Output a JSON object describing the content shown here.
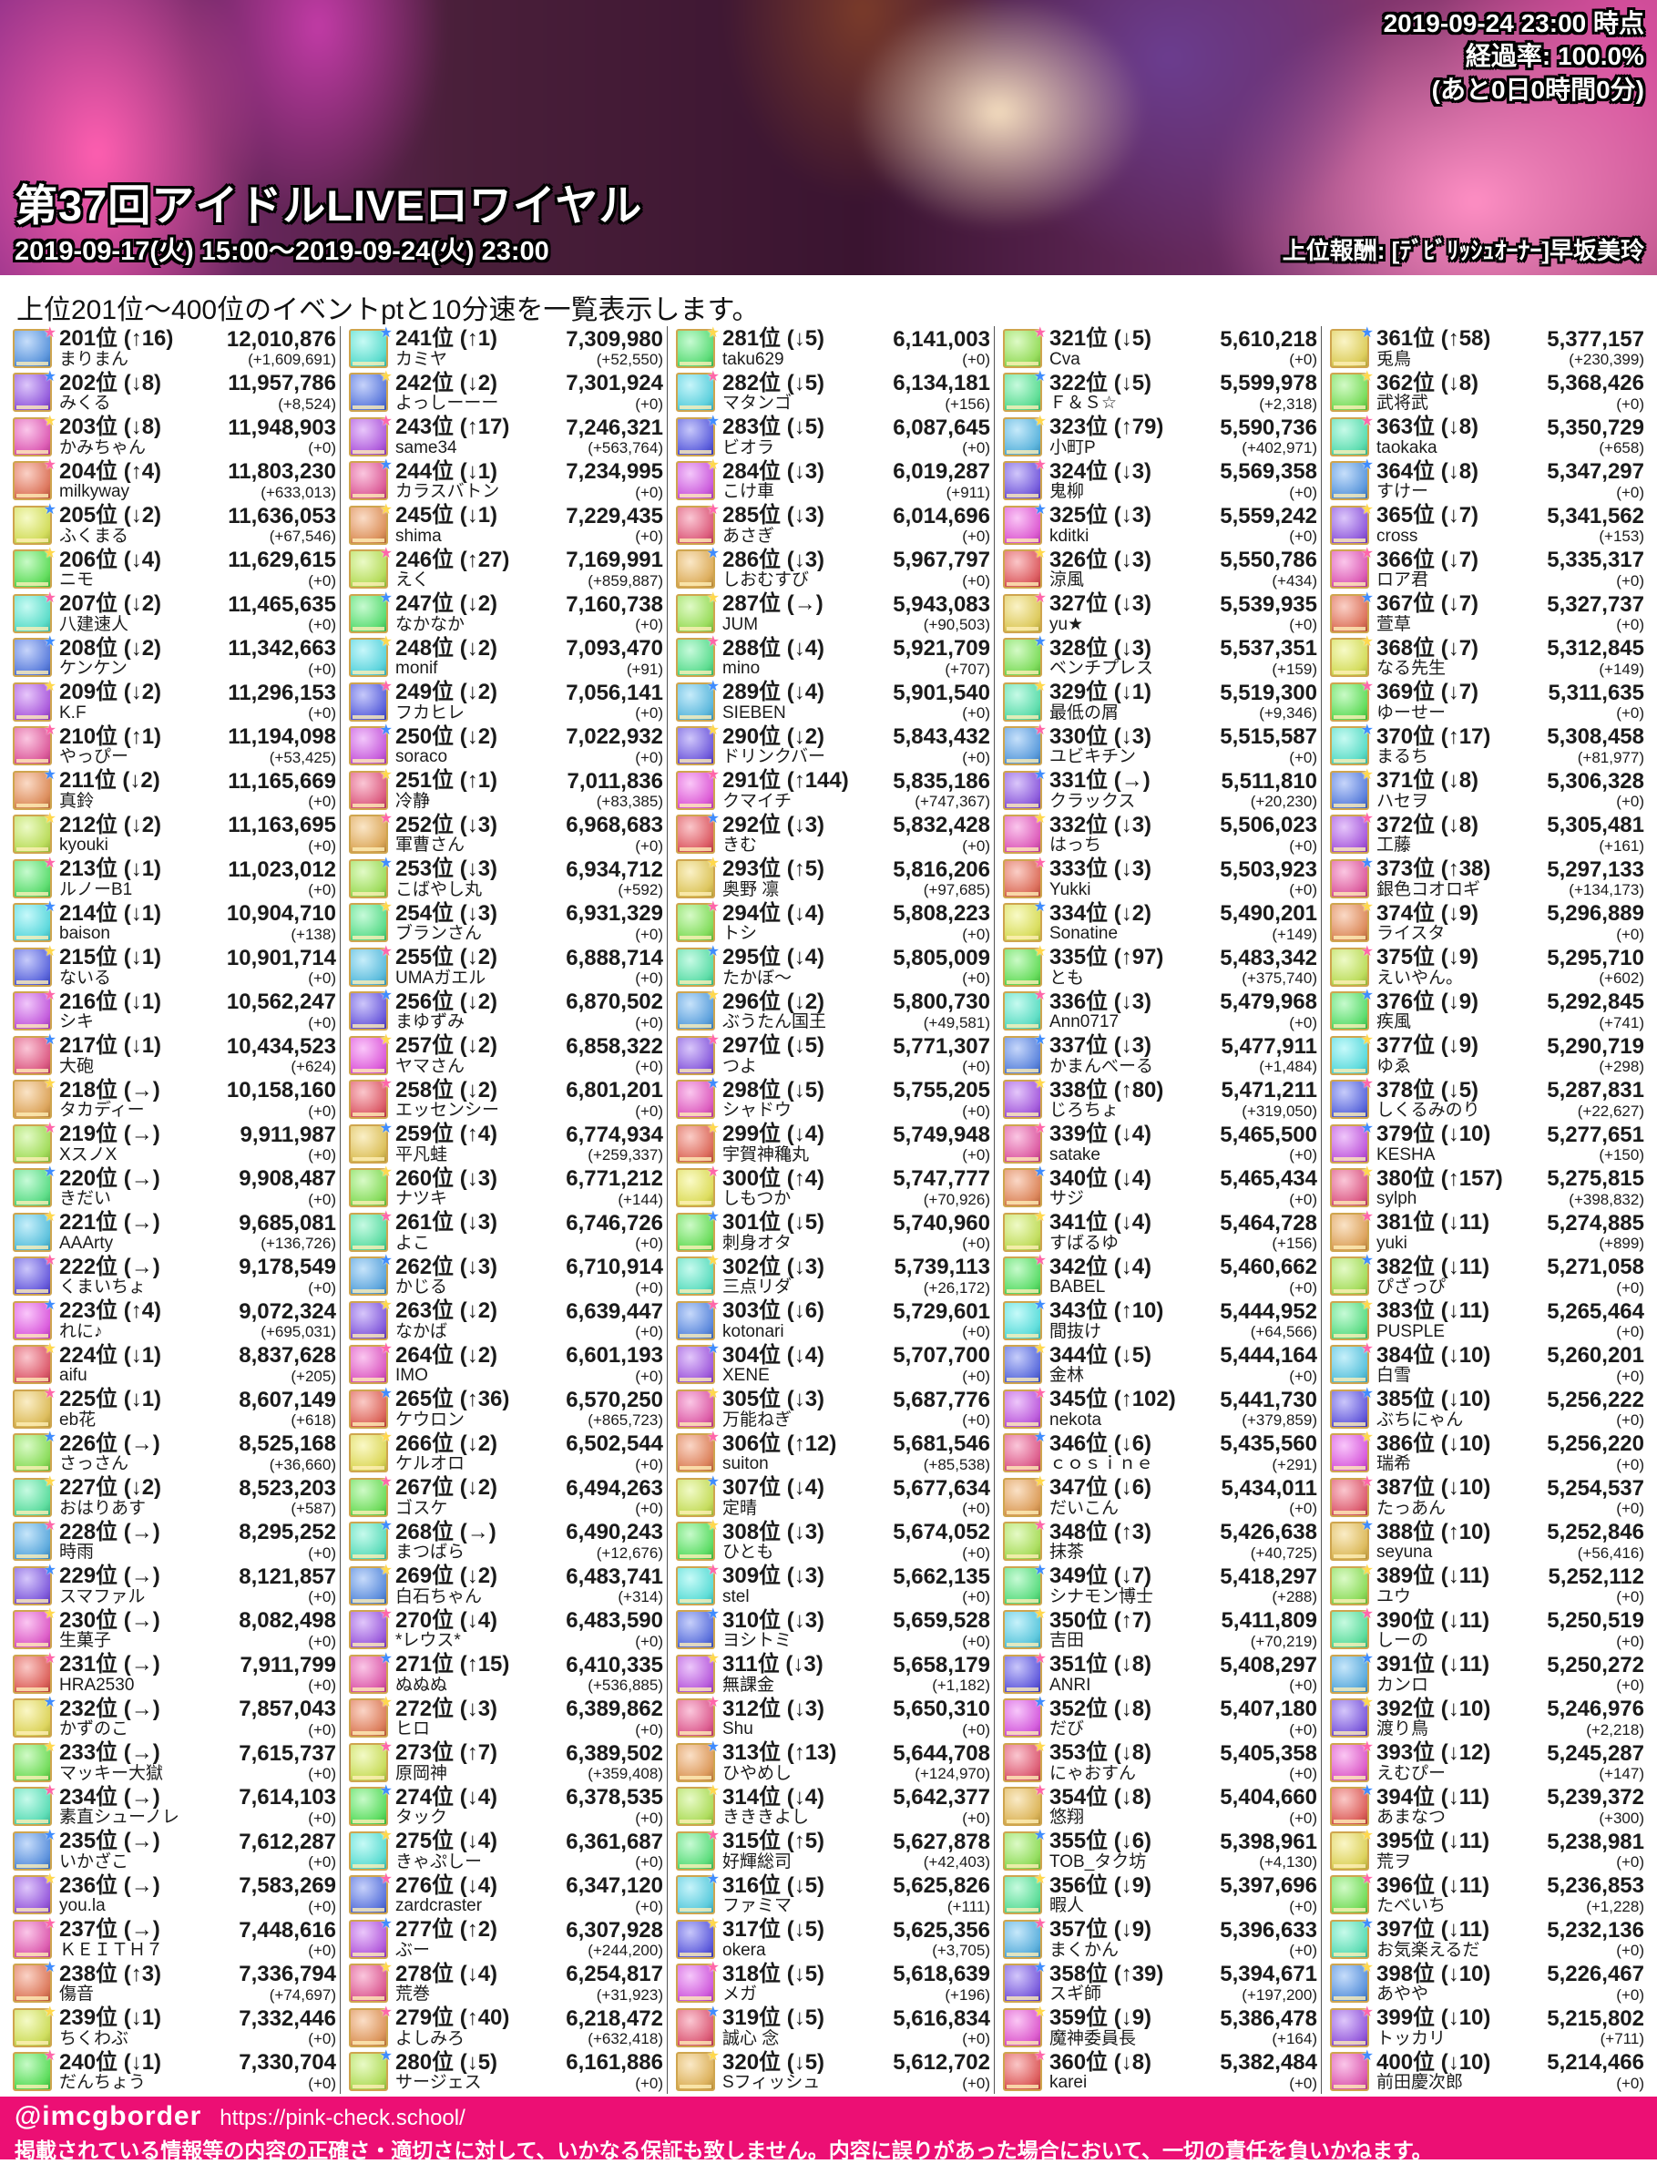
{
  "header": {
    "snapshot_time": "2019-09-24 23:00 時点",
    "progress": "経過率: 100.0%",
    "remaining": "(あと0日0時間0分)",
    "title": "第37回アイドルLIVEロワイヤル",
    "period": "2019-09-17(火) 15:00～2019-09-24(火) 23:00",
    "reward": "上位報酬: [ﾃﾞﾋﾞﾘｯｼｭｵｰﾅｰ]早坂美玲"
  },
  "subtitle": "上位201位～400位のイベントptと10分速を一覧表示します。",
  "footer": {
    "handle": "@imcgborder",
    "url": "https://pink-check.school/",
    "disclaimer": "掲載されている情報等の内容の正確さ・適切さに対して、いかなる保証も致しません。内容に誤りがあった場合において、一切の責任を負いかねます。",
    "bar_color": "#ec0f74"
  },
  "ranking": {
    "rank_suffix": "位",
    "columns": 5,
    "rows_per_column": 40,
    "entries": [
      [
        201,
        "↑16",
        "まりまん",
        "12,010,876",
        "+1,609,691"
      ],
      [
        202,
        "↓8",
        "みくる",
        "11,957,786",
        "+8,524"
      ],
      [
        203,
        "↓8",
        "かみちゃん",
        "11,948,903",
        "+0"
      ],
      [
        204,
        "↑4",
        "milkyway",
        "11,803,230",
        "+633,013"
      ],
      [
        205,
        "↓2",
        "ふくまる",
        "11,636,053",
        "+67,546"
      ],
      [
        206,
        "↓4",
        "ニモ",
        "11,629,615",
        "+0"
      ],
      [
        207,
        "↓2",
        "八建速人",
        "11,465,635",
        "+0"
      ],
      [
        208,
        "↓2",
        "ケンケン",
        "11,342,663",
        "+0"
      ],
      [
        209,
        "↓2",
        "K.F",
        "11,296,153",
        "+0"
      ],
      [
        210,
        "↑1",
        "やっぴー",
        "11,194,098",
        "+53,425"
      ],
      [
        211,
        "↓2",
        "真鈴",
        "11,165,669",
        "+0"
      ],
      [
        212,
        "↓2",
        "kyouki",
        "11,163,695",
        "+0"
      ],
      [
        213,
        "↓1",
        "ルノーB1",
        "11,023,012",
        "+0"
      ],
      [
        214,
        "↓1",
        "baison",
        "10,904,710",
        "+138"
      ],
      [
        215,
        "↓1",
        "ないる",
        "10,901,714",
        "+0"
      ],
      [
        216,
        "↓1",
        "シキ",
        "10,562,247",
        "+0"
      ],
      [
        217,
        "↓1",
        "大砲",
        "10,434,523",
        "+624"
      ],
      [
        218,
        "→",
        "タカディー",
        "10,158,160",
        "+0"
      ],
      [
        219,
        "→",
        "XスノX",
        "9,911,987",
        "+0"
      ],
      [
        220,
        "→",
        "きだい",
        "9,908,487",
        "+0"
      ],
      [
        221,
        "→",
        "AAArty",
        "9,685,081",
        "+136,726"
      ],
      [
        222,
        "→",
        "くまいちょ",
        "9,178,549",
        "+0"
      ],
      [
        223,
        "↑4",
        "れに♪",
        "9,072,324",
        "+695,031"
      ],
      [
        224,
        "↓1",
        "aifu",
        "8,837,628",
        "+205"
      ],
      [
        225,
        "↓1",
        "eb花",
        "8,607,149",
        "+618"
      ],
      [
        226,
        "→",
        "さっさん",
        "8,525,168",
        "+36,660"
      ],
      [
        227,
        "↓2",
        "おはりあす",
        "8,523,203",
        "+587"
      ],
      [
        228,
        "→",
        "時雨",
        "8,295,252",
        "+0"
      ],
      [
        229,
        "→",
        "スマファル",
        "8,121,857",
        "+0"
      ],
      [
        230,
        "→",
        "生菓子",
        "8,082,498",
        "+0"
      ],
      [
        231,
        "→",
        "HRA2530",
        "7,911,799",
        "+0"
      ],
      [
        232,
        "→",
        "かずのこ",
        "7,857,043",
        "+0"
      ],
      [
        233,
        "→",
        "マッキー大獄",
        "7,615,737",
        "+0"
      ],
      [
        234,
        "→",
        "素直シューノレ",
        "7,614,103",
        "+0"
      ],
      [
        235,
        "→",
        "いかざこ",
        "7,612,287",
        "+0"
      ],
      [
        236,
        "→",
        "you.la",
        "7,583,269",
        "+0"
      ],
      [
        237,
        "→",
        "ＫＥＩＴＨ７",
        "7,448,616",
        "+0"
      ],
      [
        238,
        "↑3",
        "傷音",
        "7,336,794",
        "+74,697"
      ],
      [
        239,
        "↓1",
        "ちくわぶ",
        "7,332,446",
        "+0"
      ],
      [
        240,
        "↓1",
        "だんちょう",
        "7,330,704",
        "+0"
      ],
      [
        241,
        "↑1",
        "カミヤ",
        "7,309,980",
        "+52,550"
      ],
      [
        242,
        "↓2",
        "よっしーーー",
        "7,301,924",
        "+0"
      ],
      [
        243,
        "↑17",
        "same34",
        "7,246,321",
        "+563,764"
      ],
      [
        244,
        "↓1",
        "カラスバトン",
        "7,234,995",
        "+0"
      ],
      [
        245,
        "↓1",
        "shima",
        "7,229,435",
        "+0"
      ],
      [
        246,
        "↑27",
        "えく",
        "7,169,991",
        "+859,887"
      ],
      [
        247,
        "↓2",
        "なかなか",
        "7,160,738",
        "+0"
      ],
      [
        248,
        "↓2",
        "monif",
        "7,093,470",
        "+91"
      ],
      [
        249,
        "↓2",
        "フカヒレ",
        "7,056,141",
        "+0"
      ],
      [
        250,
        "↓2",
        "soraco",
        "7,022,932",
        "+0"
      ],
      [
        251,
        "↑1",
        "冷静",
        "7,011,836",
        "+83,385"
      ],
      [
        252,
        "↓3",
        "軍曹さん",
        "6,968,683",
        "+0"
      ],
      [
        253,
        "↓3",
        "こばやし丸",
        "6,934,712",
        "+592"
      ],
      [
        254,
        "↓3",
        "ブランさん",
        "6,931,329",
        "+0"
      ],
      [
        255,
        "↓2",
        "UMAガエル",
        "6,888,714",
        "+0"
      ],
      [
        256,
        "↓2",
        "まゆずみ",
        "6,870,502",
        "+0"
      ],
      [
        257,
        "↓2",
        "ヤマさん",
        "6,858,322",
        "+0"
      ],
      [
        258,
        "↓2",
        "エッセンシー",
        "6,801,201",
        "+0"
      ],
      [
        259,
        "↑4",
        "平凡蛙",
        "6,774,934",
        "+259,337"
      ],
      [
        260,
        "↓3",
        "ナツキ",
        "6,771,212",
        "+144"
      ],
      [
        261,
        "↓3",
        "よこ",
        "6,746,726",
        "+0"
      ],
      [
        262,
        "↓3",
        "かじる",
        "6,710,914",
        "+0"
      ],
      [
        263,
        "↓2",
        "なかば",
        "6,639,447",
        "+0"
      ],
      [
        264,
        "↓2",
        "IMO",
        "6,601,193",
        "+0"
      ],
      [
        265,
        "↑36",
        "ケウロン",
        "6,570,250",
        "+865,723"
      ],
      [
        266,
        "↓2",
        "ケルオロ",
        "6,502,544",
        "+0"
      ],
      [
        267,
        "↓2",
        "ゴスケ",
        "6,494,263",
        "+0"
      ],
      [
        268,
        "→",
        "まつばら",
        "6,490,243",
        "+12,676"
      ],
      [
        269,
        "↓2",
        "白石ちゃん",
        "6,483,741",
        "+314"
      ],
      [
        270,
        "↓4",
        "*レウス*",
        "6,483,590",
        "+0"
      ],
      [
        271,
        "↑15",
        "ぬぬぬ",
        "6,410,335",
        "+536,885"
      ],
      [
        272,
        "↓3",
        "ヒロ",
        "6,389,862",
        "+0"
      ],
      [
        273,
        "↑7",
        "原岡神",
        "6,389,502",
        "+359,408"
      ],
      [
        274,
        "↓4",
        "タック",
        "6,378,535",
        "+0"
      ],
      [
        275,
        "↓4",
        "きゃぷしー",
        "6,361,687",
        "+0"
      ],
      [
        276,
        "↓4",
        "zardcraster",
        "6,347,120",
        "+0"
      ],
      [
        277,
        "↑2",
        "ぶー",
        "6,307,928",
        "+244,200"
      ],
      [
        278,
        "↓4",
        "荒巻",
        "6,254,817",
        "+31,923"
      ],
      [
        279,
        "↑40",
        "よしみろ",
        "6,218,472",
        "+632,418"
      ],
      [
        280,
        "↓5",
        "サージェス",
        "6,161,886",
        "+0"
      ],
      [
        281,
        "↓5",
        "taku629",
        "6,141,003",
        "+0"
      ],
      [
        282,
        "↓5",
        "マタンゴ",
        "6,134,181",
        "+156"
      ],
      [
        283,
        "↓5",
        "ビオラ",
        "6,087,645",
        "+0"
      ],
      [
        284,
        "↓3",
        "こけ車",
        "6,019,287",
        "+911"
      ],
      [
        285,
        "↓3",
        "あさぎ",
        "6,014,696",
        "+0"
      ],
      [
        286,
        "↓3",
        "しおむすび",
        "5,967,797",
        "+0"
      ],
      [
        287,
        "→",
        "JUM",
        "5,943,083",
        "+90,503"
      ],
      [
        288,
        "↓4",
        "mino",
        "5,921,709",
        "+707"
      ],
      [
        289,
        "↓4",
        "SIEBEN",
        "5,901,540",
        "+0"
      ],
      [
        290,
        "↓2",
        "ドリンクバー",
        "5,843,432",
        "+0"
      ],
      [
        291,
        "↑144",
        "クマイチ",
        "5,835,186",
        "+747,367"
      ],
      [
        292,
        "↓3",
        "きむ",
        "5,832,428",
        "+0"
      ],
      [
        293,
        "↑5",
        "奥野 凛",
        "5,816,206",
        "+97,685"
      ],
      [
        294,
        "↓4",
        "トシ",
        "5,808,223",
        "+0"
      ],
      [
        295,
        "↓4",
        "たかぼ～",
        "5,805,009",
        "+0"
      ],
      [
        296,
        "↓2",
        "ぶうたん国王",
        "5,800,730",
        "+49,581"
      ],
      [
        297,
        "↓5",
        "つよ",
        "5,771,307",
        "+0"
      ],
      [
        298,
        "↓5",
        "シャドウ",
        "5,755,205",
        "+0"
      ],
      [
        299,
        "↓4",
        "宇賀神穐丸",
        "5,749,948",
        "+0"
      ],
      [
        300,
        "↑4",
        "しもつか",
        "5,747,777",
        "+70,926"
      ],
      [
        301,
        "↓5",
        "刺身オタ",
        "5,740,960",
        "+0"
      ],
      [
        302,
        "↓3",
        "三点リダ",
        "5,739,113",
        "+26,172"
      ],
      [
        303,
        "↓6",
        "kotonari",
        "5,729,601",
        "+0"
      ],
      [
        304,
        "↓4",
        "XENE",
        "5,707,700",
        "+0"
      ],
      [
        305,
        "↓3",
        "万能ねぎ",
        "5,687,776",
        "+0"
      ],
      [
        306,
        "↑12",
        "suiton",
        "5,681,546",
        "+85,538"
      ],
      [
        307,
        "↓4",
        "定晴",
        "5,677,634",
        "+0"
      ],
      [
        308,
        "↓3",
        "ひとも",
        "5,674,052",
        "+0"
      ],
      [
        309,
        "↓3",
        "stel",
        "5,662,135",
        "+0"
      ],
      [
        310,
        "↓3",
        "ヨシトミ",
        "5,659,528",
        "+0"
      ],
      [
        311,
        "↓3",
        "無課金",
        "5,658,179",
        "+1,182"
      ],
      [
        312,
        "↓3",
        "Shu",
        "5,650,310",
        "+0"
      ],
      [
        313,
        "↑13",
        "ひやめし",
        "5,644,708",
        "+124,970"
      ],
      [
        314,
        "↓4",
        "きききよし",
        "5,642,377",
        "+0"
      ],
      [
        315,
        "↑5",
        "好輝総司",
        "5,627,878",
        "+42,403"
      ],
      [
        316,
        "↓5",
        "ファミマ",
        "5,625,826",
        "+111"
      ],
      [
        317,
        "↓5",
        "okera",
        "5,625,356",
        "+3,705"
      ],
      [
        318,
        "↓5",
        "メガ",
        "5,618,639",
        "+196"
      ],
      [
        319,
        "↓5",
        "誠心 念",
        "5,616,834",
        "+0"
      ],
      [
        320,
        "↓5",
        "Sフィッシュ",
        "5,612,702",
        "+0"
      ],
      [
        321,
        "↓5",
        "Cva",
        "5,610,218",
        "+0"
      ],
      [
        322,
        "↓5",
        "Ｆ＆Ｓ☆",
        "5,599,978",
        "+2,318"
      ],
      [
        323,
        "↑79",
        "小町P",
        "5,590,736",
        "+402,971"
      ],
      [
        324,
        "↓3",
        "鬼柳",
        "5,569,358",
        "+0"
      ],
      [
        325,
        "↓3",
        "kditki",
        "5,559,242",
        "+0"
      ],
      [
        326,
        "↓3",
        "涼風",
        "5,550,786",
        "+434"
      ],
      [
        327,
        "↓3",
        "yu★",
        "5,539,935",
        "+0"
      ],
      [
        328,
        "↓3",
        "ベンチプレス",
        "5,537,351",
        "+159"
      ],
      [
        329,
        "↓1",
        "最低の屑",
        "5,519,300",
        "+9,346"
      ],
      [
        330,
        "↓3",
        "ユビキチン",
        "5,515,587",
        "+0"
      ],
      [
        331,
        "→",
        "クラックス",
        "5,511,810",
        "+20,230"
      ],
      [
        332,
        "↓3",
        "はっち",
        "5,506,023",
        "+0"
      ],
      [
        333,
        "↓3",
        "Yukki",
        "5,503,923",
        "+0"
      ],
      [
        334,
        "↓2",
        "Sonatine",
        "5,490,201",
        "+149"
      ],
      [
        335,
        "↑97",
        "とも",
        "5,483,342",
        "+375,740"
      ],
      [
        336,
        "↓3",
        "Ann0717",
        "5,479,968",
        "+0"
      ],
      [
        337,
        "↓3",
        "かまんべーる",
        "5,477,911",
        "+1,484"
      ],
      [
        338,
        "↑80",
        "じろちょ",
        "5,471,211",
        "+319,050"
      ],
      [
        339,
        "↓4",
        "satake",
        "5,465,500",
        "+0"
      ],
      [
        340,
        "↓4",
        "サジ",
        "5,465,434",
        "+0"
      ],
      [
        341,
        "↓4",
        "すばるゆ",
        "5,464,728",
        "+156"
      ],
      [
        342,
        "↓4",
        "BABEL",
        "5,460,662",
        "+0"
      ],
      [
        343,
        "↑10",
        "間抜け",
        "5,444,952",
        "+64,566"
      ],
      [
        344,
        "↓5",
        "金林",
        "5,444,164",
        "+0"
      ],
      [
        345,
        "↑102",
        "nekota",
        "5,441,730",
        "+379,859"
      ],
      [
        346,
        "↓6",
        "ｃｏｓｉｎｅ",
        "5,435,560",
        "+291"
      ],
      [
        347,
        "↓6",
        "だいこん",
        "5,434,011",
        "+0"
      ],
      [
        348,
        "↑3",
        "抹茶",
        "5,426,638",
        "+40,725"
      ],
      [
        349,
        "↓7",
        "シナモン博士",
        "5,418,297",
        "+288"
      ],
      [
        350,
        "↑7",
        "吉田",
        "5,411,809",
        "+70,219"
      ],
      [
        351,
        "↓8",
        "ANRI",
        "5,408,297",
        "+0"
      ],
      [
        352,
        "↓8",
        "だび",
        "5,407,180",
        "+0"
      ],
      [
        353,
        "↓8",
        "にゃおすん",
        "5,405,358",
        "+0"
      ],
      [
        354,
        "↓8",
        "悠翔",
        "5,404,660",
        "+0"
      ],
      [
        355,
        "↓6",
        "TOB_タク坊",
        "5,398,961",
        "+4,130"
      ],
      [
        356,
        "↓9",
        "暇人",
        "5,397,696",
        "+0"
      ],
      [
        357,
        "↓9",
        "まくかん",
        "5,396,633",
        "+0"
      ],
      [
        358,
        "↑39",
        "スギ師",
        "5,394,671",
        "+197,200"
      ],
      [
        359,
        "↓9",
        "魔神委員長",
        "5,386,478",
        "+164"
      ],
      [
        360,
        "↓8",
        "karei",
        "5,382,484",
        "+0"
      ],
      [
        361,
        "↑58",
        "兎鳥",
        "5,377,157",
        "+230,399"
      ],
      [
        362,
        "↓8",
        "武将武",
        "5,368,426",
        "+0"
      ],
      [
        363,
        "↓8",
        "taokaka",
        "5,350,729",
        "+658"
      ],
      [
        364,
        "↓8",
        "すけー",
        "5,347,297",
        "+0"
      ],
      [
        365,
        "↓7",
        "cross",
        "5,341,562",
        "+153"
      ],
      [
        366,
        "↓7",
        "ロア君",
        "5,335,317",
        "+0"
      ],
      [
        367,
        "↓7",
        "萱草",
        "5,327,737",
        "+0"
      ],
      [
        368,
        "↓7",
        "なる先生",
        "5,312,845",
        "+149"
      ],
      [
        369,
        "↓7",
        "ゆーせー",
        "5,311,635",
        "+0"
      ],
      [
        370,
        "↑17",
        "まるち",
        "5,308,458",
        "+81,977"
      ],
      [
        371,
        "↓8",
        "ハセヲ",
        "5,306,328",
        "+0"
      ],
      [
        372,
        "↓8",
        "工藤",
        "5,305,481",
        "+161"
      ],
      [
        373,
        "↑38",
        "銀色コオロギ",
        "5,297,133",
        "+134,173"
      ],
      [
        374,
        "↓9",
        "ライスタ",
        "5,296,889",
        "+0"
      ],
      [
        375,
        "↓9",
        "えいやん。",
        "5,295,710",
        "+602"
      ],
      [
        376,
        "↓9",
        "疾風",
        "5,292,845",
        "+741"
      ],
      [
        377,
        "↓9",
        "ゆゑ",
        "5,290,719",
        "+298"
      ],
      [
        378,
        "↓5",
        "しくるみのり",
        "5,287,831",
        "+22,627"
      ],
      [
        379,
        "↓10",
        "KESHA",
        "5,277,651",
        "+150"
      ],
      [
        380,
        "↑157",
        "sylph",
        "5,275,815",
        "+398,832"
      ],
      [
        381,
        "↓11",
        "yuki",
        "5,274,885",
        "+899"
      ],
      [
        382,
        "↓11",
        "ぴざっぴ",
        "5,271,058",
        "+0"
      ],
      [
        383,
        "↓11",
        "PUSPLE",
        "5,265,464",
        "+0"
      ],
      [
        384,
        "↓10",
        "白雪",
        "5,260,201",
        "+0"
      ],
      [
        385,
        "↓10",
        "ぶちにゃん",
        "5,256,222",
        "+0"
      ],
      [
        386,
        "↓10",
        "瑞希",
        "5,256,220",
        "+0"
      ],
      [
        387,
        "↓10",
        "たっあん",
        "5,254,537",
        "+0"
      ],
      [
        388,
        "↑10",
        "seyuna",
        "5,252,846",
        "+56,416"
      ],
      [
        389,
        "↓11",
        "ユウ",
        "5,252,112",
        "+0"
      ],
      [
        390,
        "↓11",
        "しーの",
        "5,250,519",
        "+0"
      ],
      [
        391,
        "↓11",
        "カンロ",
        "5,250,272",
        "+0"
      ],
      [
        392,
        "↓10",
        "渡り鳥",
        "5,246,976",
        "+2,218"
      ],
      [
        393,
        "↓12",
        "えむぴー",
        "5,245,287",
        "+147"
      ],
      [
        394,
        "↓11",
        "あまなつ",
        "5,239,372",
        "+300"
      ],
      [
        395,
        "↓11",
        "荒ヲ",
        "5,238,981",
        "+0"
      ],
      [
        396,
        "↓11",
        "たべいち",
        "5,236,853",
        "+1,228"
      ],
      [
        397,
        "↓11",
        "お気楽えるだ",
        "5,232,136",
        "+0"
      ],
      [
        398,
        "↓10",
        "あやや",
        "5,226,467",
        "+0"
      ],
      [
        399,
        "↓10",
        "トッカリ",
        "5,215,802",
        "+711"
      ],
      [
        400,
        "↓10",
        "前田慶次郎",
        "5,214,466",
        "+0"
      ]
    ]
  }
}
